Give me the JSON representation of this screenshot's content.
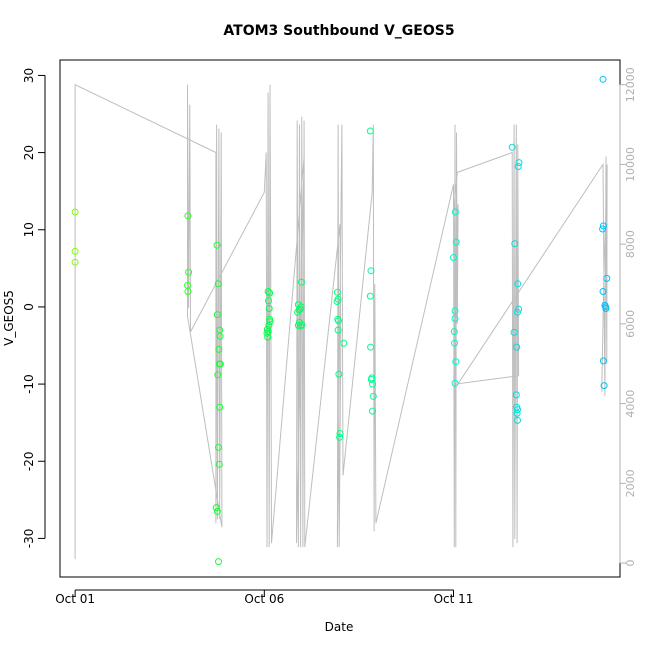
{
  "chart_data": {
    "type": "scatter",
    "title": "ATOM3 Southbound V_GEOS5",
    "xlabel": "Date",
    "ylabel": "V_GEOS5",
    "x_ticks": [
      "Oct 01",
      "Oct 06",
      "Oct 11"
    ],
    "x_tick_values": [
      0,
      5,
      10
    ],
    "xlim": [
      -0.4,
      14.4
    ],
    "y_ticks": [
      "-30",
      "-20",
      "-10",
      "0",
      "10",
      "20",
      "30"
    ],
    "y_tick_values": [
      -30,
      -20,
      -10,
      0,
      10,
      20,
      30
    ],
    "ylim": [
      -35,
      32
    ],
    "y2_ticks": [
      "0",
      "2000",
      "4000",
      "6000",
      "8000",
      "10000",
      "12000"
    ],
    "y2_tick_values": [
      0,
      2000,
      4000,
      6000,
      8000,
      10000,
      12000
    ],
    "y2lim": [
      -350,
      12620
    ],
    "legend": "none",
    "grid": false,
    "colors": {
      "track": "#bebebe",
      "axes": "#000000",
      "right_axis": "#b0b0b0",
      "early": "#80ff00",
      "mid": "#00ff40",
      "late_mid": "#00ffbf",
      "late": "#00bfff"
    },
    "points": [
      {
        "x": 0.0,
        "y": 12.3
      },
      {
        "x": 0.0,
        "y": 7.2
      },
      {
        "x": 0.0,
        "y": 5.8
      },
      {
        "x": 2.98,
        "y": 11.8
      },
      {
        "x": 3.0,
        "y": 4.5
      },
      {
        "x": 2.97,
        "y": 2.8
      },
      {
        "x": 2.98,
        "y": 2.0
      },
      {
        "x": 3.75,
        "y": 8.0
      },
      {
        "x": 3.78,
        "y": 3.0
      },
      {
        "x": 3.76,
        "y": -1.0
      },
      {
        "x": 3.82,
        "y": -3.0
      },
      {
        "x": 3.83,
        "y": -3.8
      },
      {
        "x": 3.8,
        "y": -5.5
      },
      {
        "x": 3.81,
        "y": -7.4
      },
      {
        "x": 3.84,
        "y": -7.4
      },
      {
        "x": 3.77,
        "y": -8.8
      },
      {
        "x": 3.82,
        "y": -13.0
      },
      {
        "x": 3.79,
        "y": -18.2
      },
      {
        "x": 3.81,
        "y": -20.4
      },
      {
        "x": 3.73,
        "y": -26.0
      },
      {
        "x": 3.76,
        "y": -26.5
      },
      {
        "x": 3.79,
        "y": -33.0
      },
      {
        "x": 5.1,
        "y": 2.0
      },
      {
        "x": 5.14,
        "y": 1.8
      },
      {
        "x": 5.11,
        "y": 0.8
      },
      {
        "x": 5.13,
        "y": -0.2
      },
      {
        "x": 5.14,
        "y": -1.6
      },
      {
        "x": 5.15,
        "y": -1.9
      },
      {
        "x": 5.12,
        "y": -2.4
      },
      {
        "x": 5.08,
        "y": -2.9
      },
      {
        "x": 5.1,
        "y": -3.2
      },
      {
        "x": 5.07,
        "y": -3.4
      },
      {
        "x": 5.09,
        "y": -3.9
      },
      {
        "x": 5.9,
        "y": 0.3
      },
      {
        "x": 5.92,
        "y": -0.4
      },
      {
        "x": 5.95,
        "y": -0.3
      },
      {
        "x": 5.88,
        "y": -0.7
      },
      {
        "x": 5.97,
        "y": 0.0
      },
      {
        "x": 5.93,
        "y": -2.0
      },
      {
        "x": 5.9,
        "y": -2.4
      },
      {
        "x": 5.96,
        "y": -2.5
      },
      {
        "x": 5.99,
        "y": -2.3
      },
      {
        "x": 5.98,
        "y": 3.2
      },
      {
        "x": 6.93,
        "y": 1.9
      },
      {
        "x": 6.95,
        "y": 1.0
      },
      {
        "x": 6.92,
        "y": 0.7
      },
      {
        "x": 6.94,
        "y": -1.6
      },
      {
        "x": 6.96,
        "y": -1.8
      },
      {
        "x": 6.95,
        "y": -3.0
      },
      {
        "x": 7.1,
        "y": -4.7
      },
      {
        "x": 6.97,
        "y": -8.7
      },
      {
        "x": 7.0,
        "y": -16.4
      },
      {
        "x": 6.99,
        "y": -16.9
      },
      {
        "x": 7.8,
        "y": 22.8
      },
      {
        "x": 7.82,
        "y": 4.7
      },
      {
        "x": 7.8,
        "y": 1.4
      },
      {
        "x": 7.81,
        "y": -5.2
      },
      {
        "x": 7.84,
        "y": -9.2
      },
      {
        "x": 7.83,
        "y": -9.4
      },
      {
        "x": 7.86,
        "y": -10.0
      },
      {
        "x": 7.88,
        "y": -11.6
      },
      {
        "x": 7.86,
        "y": -13.5
      },
      {
        "x": 10.0,
        "y": 6.4
      },
      {
        "x": 10.05,
        "y": 12.3
      },
      {
        "x": 10.07,
        "y": 8.4
      },
      {
        "x": 10.04,
        "y": -0.5
      },
      {
        "x": 10.04,
        "y": -1.5
      },
      {
        "x": 10.02,
        "y": -3.2
      },
      {
        "x": 10.03,
        "y": -4.7
      },
      {
        "x": 10.06,
        "y": -7.1
      },
      {
        "x": 10.04,
        "y": -9.9
      },
      {
        "x": 11.55,
        "y": 20.7
      },
      {
        "x": 11.73,
        "y": 18.7
      },
      {
        "x": 11.71,
        "y": 18.2
      },
      {
        "x": 11.62,
        "y": 8.2
      },
      {
        "x": 11.7,
        "y": 3.0
      },
      {
        "x": 11.72,
        "y": -0.3
      },
      {
        "x": 11.69,
        "y": -0.7
      },
      {
        "x": 11.6,
        "y": -3.3
      },
      {
        "x": 11.67,
        "y": -5.2
      },
      {
        "x": 11.66,
        "y": -11.4
      },
      {
        "x": 11.67,
        "y": -13.0
      },
      {
        "x": 11.69,
        "y": -13.3
      },
      {
        "x": 11.68,
        "y": -13.8
      },
      {
        "x": 11.69,
        "y": -14.7
      },
      {
        "x": 13.95,
        "y": 29.5
      },
      {
        "x": 13.96,
        "y": 10.5
      },
      {
        "x": 13.94,
        "y": 10.1
      },
      {
        "x": 14.05,
        "y": 3.7
      },
      {
        "x": 13.95,
        "y": 2.0
      },
      {
        "x": 14.0,
        "y": 0.2
      },
      {
        "x": 14.02,
        "y": 0.0
      },
      {
        "x": 14.03,
        "y": -0.2
      },
      {
        "x": 13.96,
        "y": -7.0
      },
      {
        "x": 13.98,
        "y": -10.2
      }
    ],
    "track": [
      [
        0.0,
        100
      ],
      [
        0.0,
        12000
      ],
      [
        3.72,
        10300
      ],
      [
        3.72,
        1000
      ],
      [
        3.74,
        11000
      ],
      [
        3.76,
        1100
      ],
      [
        3.8,
        10900
      ],
      [
        3.82,
        1100
      ],
      [
        3.86,
        10800
      ],
      [
        3.87,
        5000
      ],
      [
        3.88,
        900
      ],
      [
        2.97,
        6200
      ],
      [
        2.97,
        12000
      ],
      [
        3.0,
        6400
      ],
      [
        3.03,
        11500
      ],
      [
        3.05,
        5800
      ],
      [
        5.0,
        9300
      ],
      [
        5.05,
        10300
      ],
      [
        5.07,
        400
      ],
      [
        5.1,
        11800
      ],
      [
        5.13,
        400
      ],
      [
        5.15,
        12000
      ],
      [
        5.17,
        7000
      ],
      [
        5.19,
        500
      ],
      [
        6.05,
        10200
      ],
      [
        5.85,
        500
      ],
      [
        5.87,
        11100
      ],
      [
        5.9,
        400
      ],
      [
        5.93,
        11000
      ],
      [
        5.96,
        400
      ],
      [
        5.99,
        11200
      ],
      [
        6.02,
        400
      ],
      [
        6.05,
        11100
      ],
      [
        6.07,
        400
      ],
      [
        7.0,
        8500
      ],
      [
        7.02,
        5500
      ],
      [
        6.98,
        400
      ],
      [
        6.95,
        11000
      ],
      [
        6.93,
        400
      ],
      [
        7.05,
        11000
      ],
      [
        7.07,
        5000
      ],
      [
        7.08,
        2200
      ],
      [
        7.85,
        9300
      ],
      [
        7.88,
        11000
      ],
      [
        7.9,
        800
      ],
      [
        7.92,
        7000
      ],
      [
        7.95,
        1000
      ],
      [
        10.0,
        9500
      ],
      [
        10.02,
        400
      ],
      [
        10.04,
        11000
      ],
      [
        10.06,
        400
      ],
      [
        10.08,
        10800
      ],
      [
        10.1,
        6000
      ],
      [
        10.12,
        9000
      ],
      [
        10.05,
        7100
      ],
      [
        10.0,
        8800
      ],
      [
        10.1,
        9800
      ],
      [
        11.55,
        10300
      ],
      [
        11.57,
        400
      ],
      [
        11.6,
        11000
      ],
      [
        11.62,
        600
      ],
      [
        11.66,
        11000
      ],
      [
        11.68,
        500
      ],
      [
        11.7,
        10500
      ],
      [
        11.72,
        4700
      ],
      [
        10.12,
        4500
      ],
      [
        13.95,
        10000
      ],
      [
        14.0,
        4200
      ],
      [
        14.03,
        10200
      ],
      [
        14.05,
        5000
      ],
      [
        14.06,
        10000
      ],
      [
        13.97,
        7000
      ],
      [
        13.92,
        4300
      ]
    ]
  }
}
